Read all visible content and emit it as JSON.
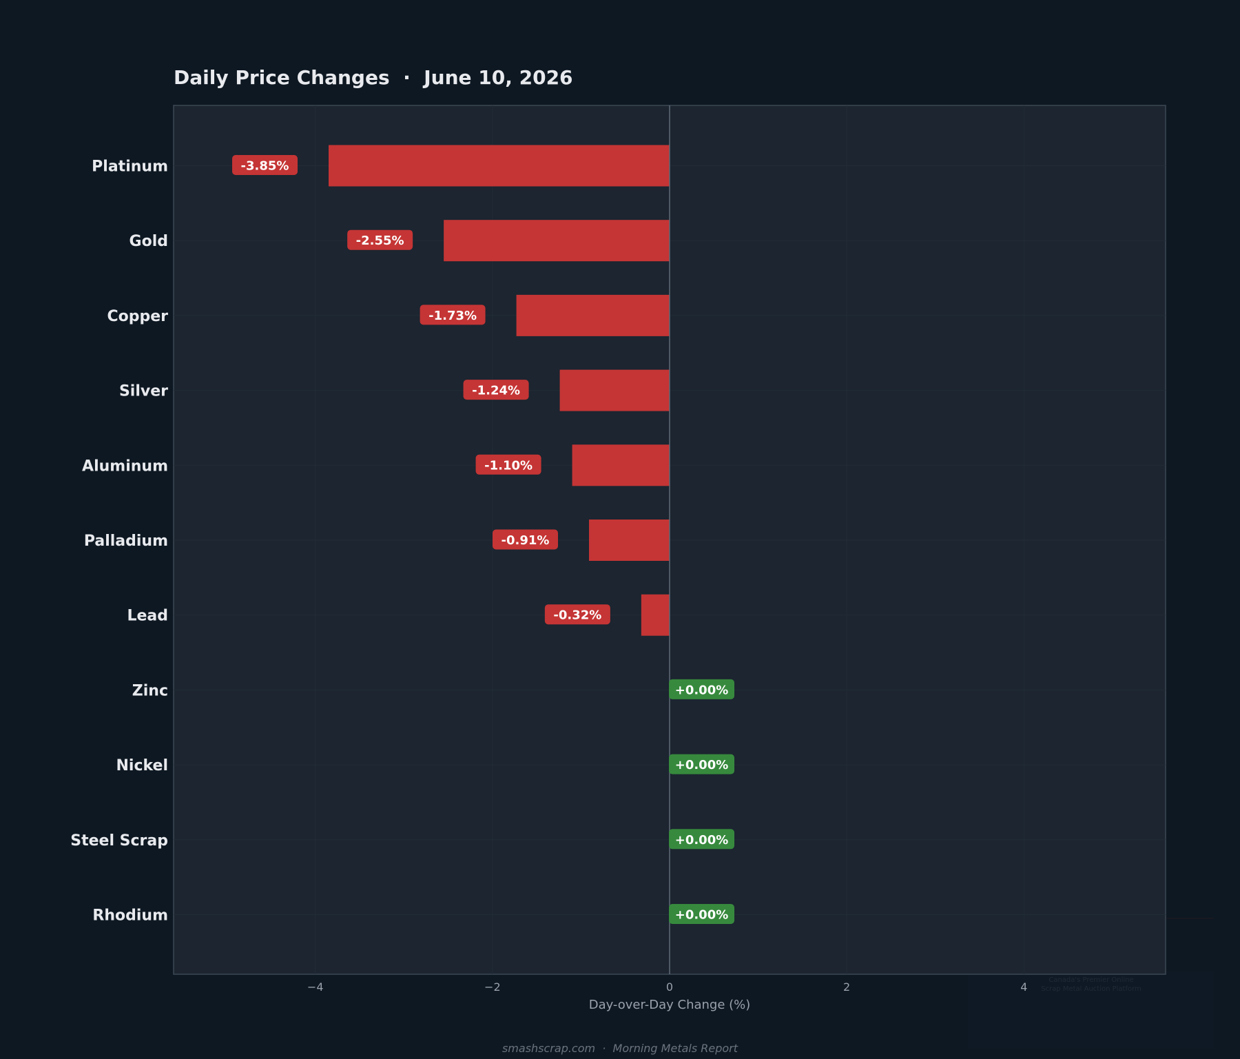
{
  "colors": {
    "page_background": "#0e1822",
    "plot_background": "#1c2530",
    "plot_border": "#3c4855",
    "zero_line": "#5f6b77",
    "grid": "#222c36",
    "negative": "#c53535",
    "positive": "#378a3d",
    "title_text": "#e8eaee",
    "category_text": "#e8eaee",
    "tick_text": "#9aa2ac",
    "footer_text": "#6a737d"
  },
  "chart_data": {
    "type": "bar",
    "orientation": "horizontal",
    "title": "Daily Price Changes  ·  June 10, 2026",
    "xlabel": "Day-over-Day Change (%)",
    "ylabel": "",
    "categories": [
      "Platinum",
      "Gold",
      "Copper",
      "Silver",
      "Aluminum",
      "Palladium",
      "Lead",
      "Zinc",
      "Nickel",
      "Steel Scrap",
      "Rhodium"
    ],
    "values": [
      -3.85,
      -2.55,
      -1.73,
      -1.24,
      -1.1,
      -0.91,
      -0.32,
      0.0,
      0.0,
      0.0,
      0.0
    ],
    "data_labels": [
      "-3.85%",
      "-2.55%",
      "-1.73%",
      "-1.24%",
      "-1.10%",
      "-0.91%",
      "-0.32%",
      "+0.00%",
      "+0.00%",
      "+0.00%",
      "+0.00%"
    ],
    "xlim": [
      -5.6,
      5.6
    ],
    "xticks": [
      -4,
      -2,
      0,
      2,
      4
    ],
    "xtick_labels": [
      "−4",
      "−2",
      "0",
      "2",
      "4"
    ],
    "grid": true,
    "legend": "none"
  },
  "footer": "smashscrap.com  ·  Morning Metals Report",
  "watermark": {
    "line1": "Canada's Premier Online",
    "line2": "Scrap Metal Auction Platform"
  }
}
